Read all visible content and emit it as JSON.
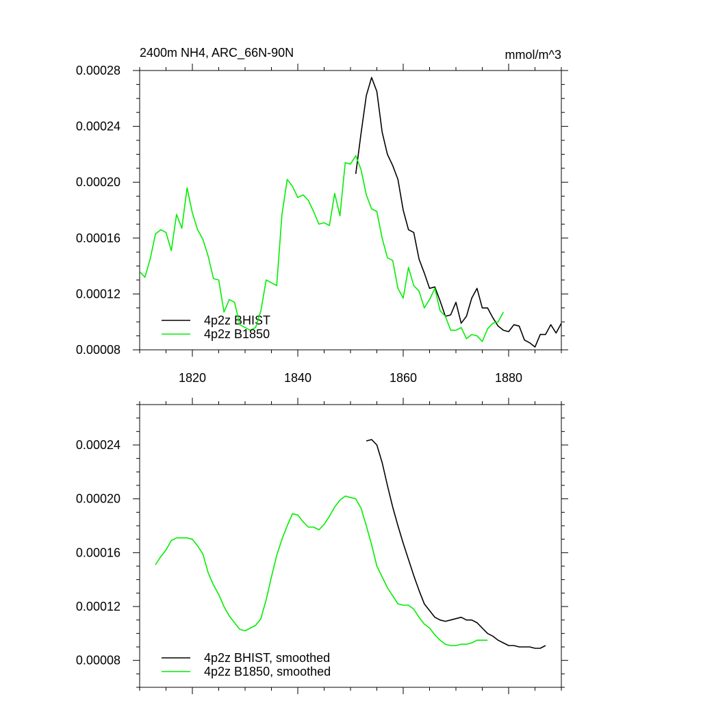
{
  "figure": {
    "title": "2400m NH4, ARC_66N-90N",
    "units": "mmol/m^3"
  },
  "chart_data": [
    {
      "type": "line",
      "title": "2400m NH4, ARC_66N-90N",
      "units_label": "mmol/m^3",
      "xlabel": "",
      "ylabel": "",
      "xlim": [
        1810,
        1890
      ],
      "ylim": [
        8e-05,
        0.00028
      ],
      "xticks": [
        1820,
        1840,
        1860,
        1880
      ],
      "xtick_labels": [
        "1820",
        "1840",
        "1860",
        "1880"
      ],
      "yticks": [
        8e-05,
        0.00012,
        0.00016,
        0.0002,
        0.00024,
        0.00028
      ],
      "ytick_labels": [
        "0.00008",
        "0.00012",
        "0.00016",
        "0.00020",
        "0.00024",
        "0.00028"
      ],
      "grid": false,
      "legend_position": "bottom-left",
      "series": [
        {
          "name": "4p2z BHIST",
          "color": "#000000",
          "x": [
            1851,
            1852,
            1853,
            1854,
            1855,
            1856,
            1857,
            1858,
            1859,
            1860,
            1861,
            1862,
            1863,
            1864,
            1865,
            1866,
            1867,
            1868,
            1869,
            1870,
            1871,
            1872,
            1873,
            1874,
            1875,
            1876,
            1877,
            1878,
            1879,
            1880,
            1881,
            1882,
            1883,
            1884,
            1885,
            1886,
            1887,
            1888,
            1889,
            1890
          ],
          "y": [
            0.000206,
            0.000235,
            0.000262,
            0.000275,
            0.000265,
            0.000236,
            0.00022,
            0.000212,
            0.000202,
            0.00018,
            0.000166,
            0.000164,
            0.000145,
            0.000135,
            0.000124,
            0.000125,
            0.000115,
            0.000104,
            0.000105,
            0.000114,
            9.9e-05,
            0.000104,
            0.000117,
            0.000124,
            0.00011,
            0.00011,
            0.000103,
            9.7e-05,
            9.4e-05,
            9.3e-05,
            9.8e-05,
            9.7e-05,
            8.7e-05,
            8.5e-05,
            8.2e-05,
            9.1e-05,
            9.1e-05,
            9.8e-05,
            9.2e-05,
            9.9e-05
          ]
        },
        {
          "name": "4p2z B1850",
          "color": "#00ee00",
          "x": [
            1810,
            1811,
            1812,
            1813,
            1814,
            1815,
            1816,
            1817,
            1818,
            1819,
            1820,
            1821,
            1822,
            1823,
            1824,
            1825,
            1826,
            1827,
            1828,
            1829,
            1830,
            1831,
            1832,
            1833,
            1834,
            1835,
            1836,
            1837,
            1838,
            1839,
            1840,
            1841,
            1842,
            1843,
            1844,
            1845,
            1846,
            1847,
            1848,
            1849,
            1850,
            1851,
            1852,
            1853,
            1854,
            1855,
            1856,
            1857,
            1858,
            1859,
            1860,
            1861,
            1862,
            1863,
            1864,
            1865,
            1866,
            1867,
            1868,
            1869,
            1870,
            1871,
            1872,
            1873,
            1874,
            1875,
            1876,
            1877,
            1878,
            1879
          ],
          "y": [
            0.000136,
            0.000132,
            0.000145,
            0.000163,
            0.000166,
            0.000164,
            0.000151,
            0.000177,
            0.000167,
            0.000196,
            0.000178,
            0.000166,
            0.000159,
            0.000147,
            0.000131,
            0.00013,
            0.000107,
            0.000116,
            0.000114,
            9.8e-05,
            9.6e-05,
            9.4e-05,
            9.6e-05,
            0.000108,
            0.00013,
            0.000128,
            0.000126,
            0.000177,
            0.000202,
            0.000197,
            0.000189,
            0.000191,
            0.000187,
            0.000179,
            0.00017,
            0.000171,
            0.000169,
            0.000192,
            0.000176,
            0.000214,
            0.000213,
            0.000219,
            0.000209,
            0.000191,
            0.000181,
            0.000179,
            0.00016,
            0.000146,
            0.000144,
            0.000124,
            0.000117,
            0.000139,
            0.000126,
            0.000122,
            0.00011,
            0.000116,
            0.000124,
            0.000108,
            0.000104,
            9.4e-05,
            9.4e-05,
            9.6e-05,
            8.8e-05,
            9.1e-05,
            9e-05,
            8.6e-05,
            9.5e-05,
            9.9e-05,
            0.0001,
            0.000107
          ]
        }
      ]
    },
    {
      "type": "line",
      "title": "",
      "xlabel": "",
      "ylabel": "",
      "xlim": [
        1810,
        1890
      ],
      "ylim": [
        6e-05,
        0.00027
      ],
      "xticks": [
        1820,
        1840,
        1860,
        1880
      ],
      "xtick_labels": [],
      "yticks": [
        8e-05,
        0.00012,
        0.00016,
        0.0002,
        0.00024
      ],
      "ytick_labels": [
        "0.00008",
        "0.00012",
        "0.00016",
        "0.00020",
        "0.00024"
      ],
      "grid": false,
      "legend_position": "bottom-left",
      "series": [
        {
          "name": "4p2z BHIST, smoothed",
          "color": "#000000",
          "x": [
            1853,
            1854,
            1855,
            1856,
            1857,
            1858,
            1859,
            1860,
            1861,
            1862,
            1863,
            1864,
            1865,
            1866,
            1867,
            1868,
            1869,
            1870,
            1871,
            1872,
            1873,
            1874,
            1875,
            1876,
            1877,
            1878,
            1879,
            1880,
            1881,
            1882,
            1883,
            1884,
            1885,
            1886,
            1887
          ],
          "y": [
            0.000243,
            0.000244,
            0.00024,
            0.000227,
            0.00021,
            0.000194,
            0.00018,
            0.000167,
            0.000155,
            0.000143,
            0.000132,
            0.000122,
            0.000117,
            0.000112,
            0.00011,
            0.000109,
            0.00011,
            0.000111,
            0.000112,
            0.00011,
            0.00011,
            0.000108,
            0.000104,
            0.0001,
            9.8e-05,
            9.5e-05,
            9.3e-05,
            9.1e-05,
            9.1e-05,
            9e-05,
            9e-05,
            9e-05,
            8.9e-05,
            8.9e-05,
            9.1e-05
          ]
        },
        {
          "name": "4p2z B1850, smoothed",
          "color": "#00ee00",
          "x": [
            1813,
            1814,
            1815,
            1816,
            1817,
            1818,
            1819,
            1820,
            1821,
            1822,
            1823,
            1824,
            1825,
            1826,
            1827,
            1828,
            1829,
            1830,
            1831,
            1832,
            1833,
            1834,
            1835,
            1836,
            1837,
            1838,
            1839,
            1840,
            1841,
            1842,
            1843,
            1844,
            1845,
            1846,
            1847,
            1848,
            1849,
            1850,
            1851,
            1852,
            1853,
            1854,
            1855,
            1856,
            1857,
            1858,
            1859,
            1860,
            1861,
            1862,
            1863,
            1864,
            1865,
            1866,
            1867,
            1868,
            1869,
            1870,
            1871,
            1872,
            1873,
            1874,
            1875,
            1876
          ],
          "y": [
            0.000151,
            0.000157,
            0.000162,
            0.000169,
            0.000171,
            0.000171,
            0.000171,
            0.00017,
            0.000165,
            0.000159,
            0.000145,
            0.000136,
            0.000129,
            0.00012,
            0.000113,
            0.000108,
            0.000103,
            0.000102,
            0.000104,
            0.000106,
            0.000111,
            0.000125,
            0.000142,
            0.000158,
            0.00017,
            0.00018,
            0.000189,
            0.000188,
            0.000183,
            0.000179,
            0.000179,
            0.000177,
            0.000181,
            0.000187,
            0.000194,
            0.000199,
            0.000202,
            0.000201,
            0.0002,
            0.000193,
            0.00018,
            0.000166,
            0.00015,
            0.000142,
            0.000134,
            0.000128,
            0.000122,
            0.000121,
            0.000121,
            0.000118,
            0.000112,
            0.000107,
            0.000104,
            9.9e-05,
            9.5e-05,
            9.2e-05,
            9.1e-05,
            9.1e-05,
            9.2e-05,
            9.2e-05,
            9.3e-05,
            9.5e-05,
            9.5e-05,
            9.5e-05
          ]
        }
      ]
    }
  ]
}
